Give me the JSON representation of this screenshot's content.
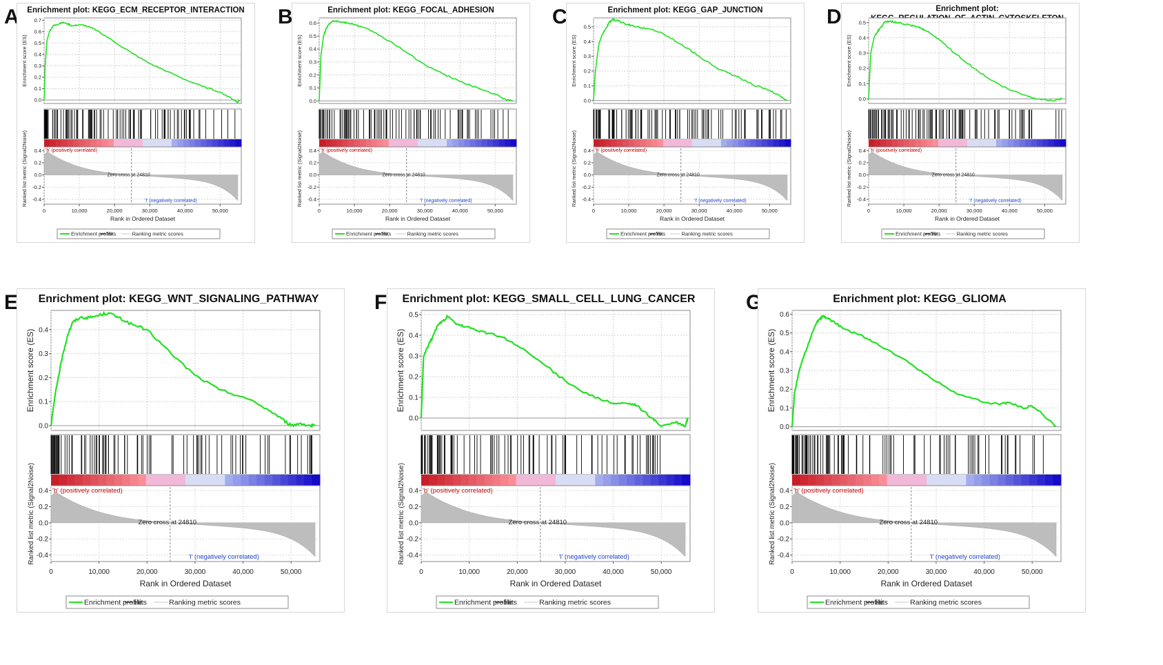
{
  "common": {
    "es_ylabel": "Enrichment score (ES)",
    "metric_ylabel": "Ranked list metric (Signal2Noise)",
    "xlabel": "Rank in Ordered Dataset",
    "pos_label": "'h' (positively correlated)",
    "neg_label": "'l' (negatively correlated)",
    "zero_cross": "Zero cross at 24810",
    "legend": [
      "Enrichment profile",
      "Hits",
      "Ranking metric scores"
    ],
    "x_ticks": [
      "0",
      "10,000",
      "20,000",
      "30,000",
      "40,000",
      "50,000"
    ],
    "metric_ticks": [
      "0.4",
      "0.2",
      "0.0",
      "-0.2",
      "-0.4"
    ],
    "colors": {
      "profile": "#22e022",
      "hits": "#000000",
      "metric": "#bdbdbd",
      "pos": "#cc0000",
      "neg": "#2244cc"
    }
  },
  "panels": [
    {
      "letter": "A",
      "title": "Enrichment plot: KEGG_ECM_RECEPTOR_INTERACTION",
      "es_ticks": [
        "0.7",
        "0.6",
        "0.5",
        "0.4",
        "0.3",
        "0.2",
        "0.1",
        "0.0"
      ]
    },
    {
      "letter": "B",
      "title": "Enrichment plot: KEGG_FOCAL_ADHESION",
      "es_ticks": [
        "0.6",
        "0.5",
        "0.4",
        "0.3",
        "0.2",
        "0.1",
        "0.0"
      ]
    },
    {
      "letter": "C",
      "title": "Enrichment plot: KEGG_GAP_JUNCTION",
      "es_ticks": [
        "0.5",
        "0.4",
        "0.3",
        "0.2",
        "0.1",
        "0.0"
      ]
    },
    {
      "letter": "D",
      "title": "Enrichment plot: KEGG_REGULATION_OF_ACTIN_CYTOSKELETON",
      "es_ticks": [
        "0.5",
        "0.4",
        "0.3",
        "0.2",
        "0.1",
        "0.0"
      ]
    },
    {
      "letter": "E",
      "title": "Enrichment plot: KEGG_WNT_SIGNALING_PATHWAY",
      "es_ticks": [
        "0.4",
        "0.3",
        "0.2",
        "0.1",
        "0.0"
      ]
    },
    {
      "letter": "F",
      "title": "Enrichment plot: KEGG_SMALL_CELL_LUNG_CANCER",
      "es_ticks": [
        "0.5",
        "0.4",
        "0.3",
        "0.2",
        "0.1",
        "0.0"
      ]
    },
    {
      "letter": "G",
      "title": "Enrichment plot: KEGG_GLIOMA",
      "es_ticks": [
        "0.6",
        "0.5",
        "0.4",
        "0.3",
        "0.2",
        "0.1",
        "0.0"
      ]
    }
  ],
  "chart_data": [
    {
      "type": "line",
      "title": "Enrichment plot: KEGG_ECM_RECEPTOR_INTERACTION",
      "xlabel": "Rank in Ordered Dataset",
      "ylabel": "Enrichment score (ES)",
      "xlim": [
        0,
        56000
      ],
      "ylim": [
        -0.03,
        0.72
      ],
      "x": [
        0,
        300,
        800,
        1500,
        2500,
        3500,
        5000,
        6500,
        8000,
        10000,
        12000,
        15000,
        20000,
        25000,
        30000,
        35000,
        40000,
        45000,
        50000,
        54000,
        55000,
        55500
      ],
      "y": [
        0.0,
        0.3,
        0.52,
        0.6,
        0.65,
        0.66,
        0.68,
        0.67,
        0.65,
        0.66,
        0.65,
        0.61,
        0.51,
        0.41,
        0.32,
        0.25,
        0.18,
        0.12,
        0.07,
        0.0,
        -0.02,
        0.0
      ]
    },
    {
      "type": "line",
      "title": "Enrichment plot: KEGG_FOCAL_ADHESION",
      "xlabel": "Rank in Ordered Dataset",
      "ylabel": "Enrichment score (ES)",
      "xlim": [
        0,
        56000
      ],
      "ylim": [
        -0.02,
        0.64
      ],
      "x": [
        0,
        500,
        1200,
        2000,
        3000,
        4000,
        6000,
        8000,
        10000,
        12000,
        15000,
        20000,
        25000,
        30000,
        35000,
        40000,
        45000,
        50000,
        53000,
        55000
      ],
      "y": [
        0.0,
        0.35,
        0.5,
        0.56,
        0.6,
        0.62,
        0.61,
        0.6,
        0.59,
        0.57,
        0.54,
        0.46,
        0.37,
        0.28,
        0.21,
        0.15,
        0.1,
        0.05,
        0.01,
        0.0
      ]
    },
    {
      "type": "line",
      "title": "Enrichment plot: KEGG_GAP_JUNCTION",
      "xlabel": "Rank in Ordered Dataset",
      "ylabel": "Enrichment score (ES)",
      "xlim": [
        0,
        56000
      ],
      "ylim": [
        -0.02,
        0.56
      ],
      "x": [
        0,
        500,
        1500,
        2500,
        3500,
        4500,
        5500,
        7000,
        9000,
        11000,
        14000,
        17000,
        20000,
        25000,
        30000,
        35000,
        40000,
        45000,
        50000,
        53000,
        55000
      ],
      "y": [
        0.0,
        0.2,
        0.38,
        0.45,
        0.49,
        0.53,
        0.55,
        0.54,
        0.52,
        0.51,
        0.49,
        0.48,
        0.45,
        0.38,
        0.3,
        0.22,
        0.17,
        0.11,
        0.07,
        0.03,
        0.0
      ]
    },
    {
      "type": "line",
      "title": "Enrichment plot: KEGG_REGULATION_OF_ACTIN_CYTOSKELETON",
      "xlabel": "Rank in Ordered Dataset",
      "ylabel": "Enrichment score (ES)",
      "xlim": [
        0,
        56000
      ],
      "ylim": [
        -0.03,
        0.53
      ],
      "x": [
        0,
        600,
        1500,
        2500,
        3500,
        4500,
        6000,
        8000,
        10000,
        12000,
        14000,
        16000,
        20000,
        25000,
        30000,
        35000,
        40000,
        45000,
        48000,
        52000,
        55000
      ],
      "y": [
        0.0,
        0.3,
        0.4,
        0.44,
        0.47,
        0.5,
        0.51,
        0.5,
        0.49,
        0.48,
        0.47,
        0.45,
        0.39,
        0.29,
        0.2,
        0.12,
        0.06,
        0.02,
        0.0,
        -0.01,
        0.0
      ]
    },
    {
      "type": "line",
      "title": "Enrichment plot: KEGG_WNT_SIGNALING_PATHWAY",
      "xlabel": "Rank in Ordered Dataset",
      "ylabel": "Enrichment score (ES)",
      "xlim": [
        0,
        56000
      ],
      "ylim": [
        -0.02,
        0.48
      ],
      "x": [
        0,
        800,
        1500,
        2500,
        3500,
        4500,
        6000,
        8000,
        10000,
        12000,
        14000,
        17000,
        20000,
        25000,
        30000,
        35000,
        40000,
        45000,
        48000,
        50000,
        52000,
        54000,
        55000
      ],
      "y": [
        0.0,
        0.12,
        0.2,
        0.3,
        0.38,
        0.43,
        0.45,
        0.45,
        0.46,
        0.47,
        0.45,
        0.42,
        0.4,
        0.3,
        0.21,
        0.15,
        0.12,
        0.07,
        0.03,
        0.0,
        0.01,
        0.0,
        0.0
      ]
    },
    {
      "type": "line",
      "title": "Enrichment plot: KEGG_SMALL_CELL_LUNG_CANCER",
      "xlabel": "Rank in Ordered Dataset",
      "ylabel": "Enrichment score (ES)",
      "xlim": [
        0,
        56000
      ],
      "ylim": [
        -0.06,
        0.52
      ],
      "x": [
        0,
        500,
        1500,
        2500,
        3500,
        4500,
        5500,
        7000,
        9000,
        11000,
        14000,
        17000,
        20000,
        25000,
        30000,
        35000,
        40000,
        43000,
        45000,
        48000,
        50000,
        53000,
        55000,
        55500
      ],
      "y": [
        0.0,
        0.3,
        0.35,
        0.4,
        0.45,
        0.47,
        0.49,
        0.46,
        0.44,
        0.43,
        0.41,
        0.39,
        0.35,
        0.27,
        0.18,
        0.11,
        0.07,
        0.07,
        0.06,
        0.0,
        -0.04,
        -0.02,
        -0.04,
        0.0
      ]
    },
    {
      "type": "line",
      "title": "Enrichment plot: KEGG_GLIOMA",
      "xlabel": "Rank in Ordered Dataset",
      "ylabel": "Enrichment score (ES)",
      "xlim": [
        0,
        56000
      ],
      "ylim": [
        -0.02,
        0.62
      ],
      "x": [
        0,
        500,
        1500,
        2500,
        3500,
        4500,
        5500,
        6500,
        7500,
        9000,
        11000,
        14000,
        17000,
        20000,
        25000,
        30000,
        35000,
        40000,
        43000,
        45000,
        48000,
        50000,
        52000,
        55000
      ],
      "y": [
        0.0,
        0.18,
        0.3,
        0.38,
        0.45,
        0.52,
        0.57,
        0.59,
        0.58,
        0.55,
        0.52,
        0.49,
        0.45,
        0.41,
        0.33,
        0.24,
        0.17,
        0.13,
        0.12,
        0.13,
        0.1,
        0.11,
        0.07,
        0.0
      ]
    }
  ]
}
